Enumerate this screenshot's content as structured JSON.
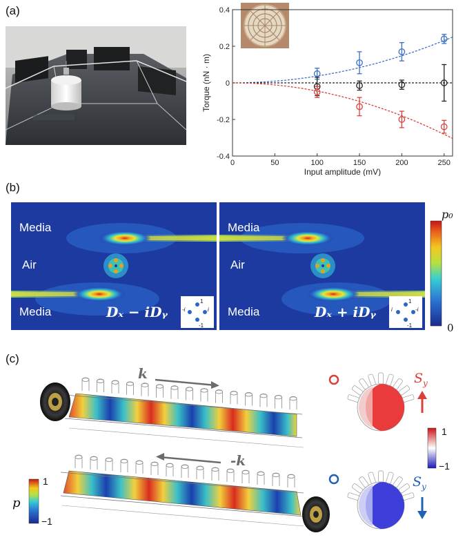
{
  "panel_labels": {
    "a": "(a)",
    "b": "(b)",
    "c": "(c)"
  },
  "chart_data": {
    "type": "scatter",
    "xlabel": "Input amplitude (mV)",
    "ylabel": "Torque (nN · m)",
    "xlim": [
      0,
      260
    ],
    "ylim": [
      -0.4,
      0.4
    ],
    "xticks": [
      "0",
      "50",
      "100",
      "150",
      "200",
      "250"
    ],
    "yticks": [
      "-0.4",
      "-0.2",
      "0",
      "0.2",
      "0.4"
    ],
    "grid": false,
    "series": [
      {
        "color": "#3a6fc4",
        "x": [
          100,
          150,
          200,
          250
        ],
        "y": [
          0.05,
          0.11,
          0.17,
          0.24
        ],
        "err": [
          0.03,
          0.06,
          0.05,
          0.025
        ]
      },
      {
        "color": "#222222",
        "x": [
          100,
          150,
          200,
          250
        ],
        "y": [
          -0.02,
          -0.015,
          -0.01,
          0.0
        ],
        "err": [
          0.05,
          0.025,
          0.025,
          0.1
        ]
      },
      {
        "color": "#d9403a",
        "x": [
          100,
          150,
          200,
          250
        ],
        "y": [
          -0.05,
          -0.13,
          -0.2,
          -0.24
        ],
        "err": [
          0.03,
          0.05,
          0.045,
          0.035
        ]
      }
    ],
    "fits": [
      {
        "color": "#3a6fc4",
        "a": 3.7e-06
      },
      {
        "color": "#222222",
        "a": 0.0
      },
      {
        "color": "#d9403a",
        "a": -4.5e-06
      }
    ]
  },
  "panel_b": {
    "left": {
      "labels": [
        "Media",
        "Air",
        "Media"
      ],
      "formula": "Dₓ − iDᵧ",
      "inset": [
        "1",
        "i",
        "-1",
        "-i"
      ]
    },
    "right": {
      "labels": [
        "Media",
        "Air",
        "Media"
      ],
      "formula": "Dₓ + iDᵧ",
      "inset": [
        "1",
        "-i",
        "-1",
        "i"
      ]
    },
    "colorbar": {
      "max": "p₀",
      "min": "0"
    }
  },
  "panel_c": {
    "k_top": "k",
    "k_bottom": "-k",
    "p_label": "p",
    "cbar_left": {
      "max": "1",
      "min": "−1"
    },
    "cbar_right": {
      "max": "1",
      "min": "−1"
    },
    "s_top": "S",
    "s_bottom": "S",
    "s_sub": "y",
    "colors": {
      "red": "#d9403a",
      "blue": "#1f62b3"
    }
  }
}
